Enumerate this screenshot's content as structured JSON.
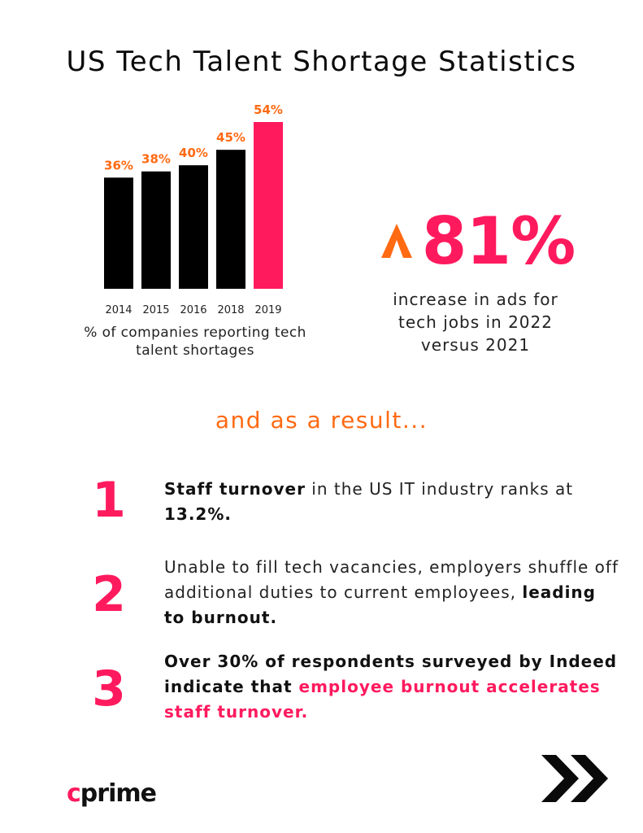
{
  "title": "US Tech Talent Shortage Statistics",
  "chart_data": {
    "type": "bar",
    "categories": [
      "2014",
      "2015",
      "2016",
      "2018",
      "2019"
    ],
    "values": [
      36,
      38,
      40,
      45,
      54
    ],
    "value_labels": [
      "36%",
      "38%",
      "40%",
      "45%",
      "54%"
    ],
    "ylim": [
      0,
      54
    ],
    "grid": false,
    "caption": "% of companies reporting tech talent shortages",
    "colors": {
      "bar": "#000000",
      "highlight": "#ff1a5e",
      "label": "#ff6a13"
    },
    "highlight_index": 4
  },
  "stat": {
    "value": "81%",
    "icon": "up-chevron-icon",
    "description": "increase in ads for tech jobs in 2022 versus 2021"
  },
  "subheading": "and as a result...",
  "results": [
    {
      "number": "1",
      "parts": [
        {
          "text": "Staff turnover",
          "style": "bold"
        },
        {
          "text": " in the US IT industry ranks at ",
          "style": "normal"
        },
        {
          "text": "13.2%.",
          "style": "bold"
        }
      ]
    },
    {
      "number": "2",
      "parts": [
        {
          "text": "Unable to fill tech vacancies, employers shuffle off additional duties to current employees, ",
          "style": "normal"
        },
        {
          "text": "leading to burnout.",
          "style": "bold"
        }
      ]
    },
    {
      "number": "3",
      "parts": [
        {
          "text": "Over 30% of respondents surveyed by Indeed indicate that ",
          "style": "bold"
        },
        {
          "text": "employee burnout accelerates staff turnover.",
          "style": "pink-bold"
        }
      ]
    }
  ],
  "logo": {
    "first": "c",
    "rest": "prime"
  },
  "footer_icon": "double-chevron-right-icon",
  "colors": {
    "accent_pink": "#ff1a5e",
    "accent_orange": "#ff6a13",
    "text": "#111111"
  }
}
